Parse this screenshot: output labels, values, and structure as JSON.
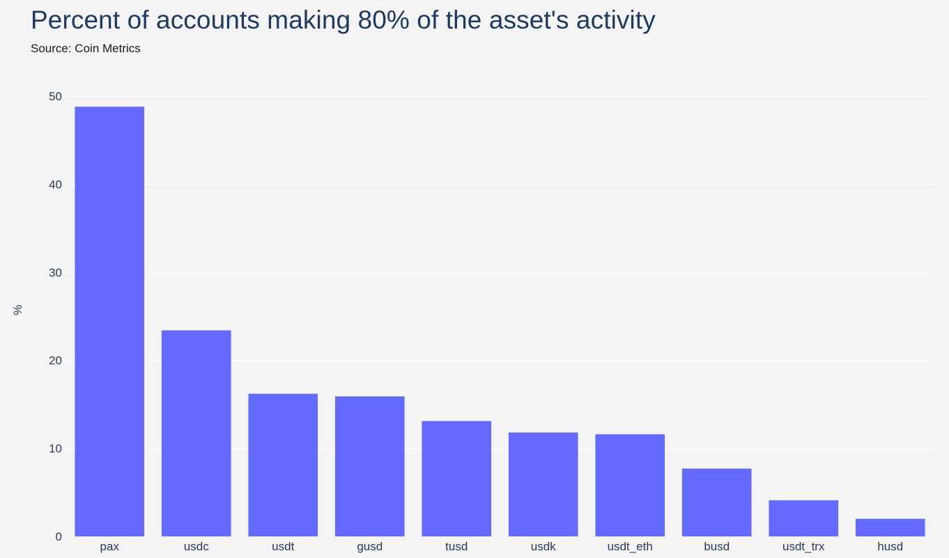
{
  "header": {
    "title": "Percent of accounts making 80% of the asset's activity",
    "subtitle": "Source: Coin Metrics"
  },
  "chart_data": {
    "type": "bar",
    "title": "Percent of accounts making 80% of the asset's activity",
    "subtitle": "Source: Coin Metrics",
    "xlabel": "",
    "ylabel": "%",
    "categories": [
      "pax",
      "usdc",
      "usdt",
      "gusd",
      "tusd",
      "usdk",
      "usdt_eth",
      "busd",
      "usdt_trx",
      "husd"
    ],
    "values": [
      48.8,
      23.4,
      16.2,
      15.9,
      13.1,
      11.8,
      11.6,
      7.7,
      4.1,
      2.0
    ],
    "ylim": [
      0,
      50
    ],
    "yticks": [
      0,
      10,
      20,
      30,
      40,
      50
    ],
    "grid": true,
    "colors": {
      "bar": "#6469ff",
      "grid": "#ffffff",
      "background": "#f4f4f4"
    }
  }
}
